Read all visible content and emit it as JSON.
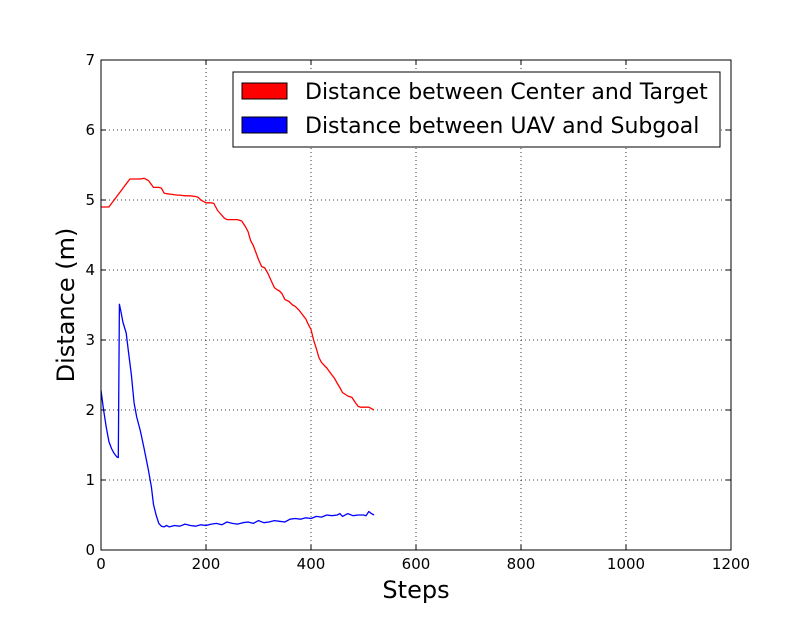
{
  "chart_data": {
    "type": "line",
    "title": "",
    "xlabel": "Steps",
    "ylabel": "Distance (m)",
    "xlim": [
      0,
      1200
    ],
    "ylim": [
      0,
      7
    ],
    "xticks": [
      0,
      200,
      400,
      600,
      800,
      1000,
      1200
    ],
    "yticks": [
      0,
      1,
      2,
      3,
      4,
      5,
      6,
      7
    ],
    "xtick_labels": [
      "0",
      "200",
      "400",
      "600",
      "800",
      "1000",
      "1200"
    ],
    "ytick_labels": [
      "0",
      "1",
      "2",
      "3",
      "4",
      "5",
      "6",
      "7"
    ],
    "grid": true,
    "legend_position": "top-right",
    "series": [
      {
        "name": "Distance between Center and Target",
        "color": "#ff0000",
        "x": [
          0,
          15,
          25,
          35,
          45,
          55,
          65,
          75,
          82,
          90,
          100,
          110,
          115,
          120,
          125,
          135,
          145,
          150,
          160,
          170,
          180,
          185,
          190,
          195,
          200,
          205,
          210,
          215,
          222,
          228,
          235,
          240,
          250,
          260,
          268,
          275,
          280,
          285,
          290,
          295,
          300,
          306,
          312,
          318,
          324,
          330,
          335,
          340,
          345,
          350,
          358,
          365,
          370,
          378,
          385,
          390,
          395,
          400,
          405,
          410,
          415,
          420,
          430,
          438,
          445,
          450,
          455,
          460,
          470,
          478,
          485,
          490,
          495,
          500,
          510,
          520
        ],
        "y": [
          4.9,
          4.9,
          5.0,
          5.1,
          5.2,
          5.3,
          5.3,
          5.3,
          5.31,
          5.28,
          5.18,
          5.18,
          5.17,
          5.1,
          5.09,
          5.08,
          5.07,
          5.07,
          5.06,
          5.06,
          5.05,
          5.04,
          5.0,
          4.98,
          4.96,
          4.96,
          4.96,
          4.95,
          4.85,
          4.8,
          4.74,
          4.72,
          4.72,
          4.72,
          4.7,
          4.62,
          4.55,
          4.42,
          4.35,
          4.25,
          4.15,
          4.05,
          4.03,
          3.95,
          3.85,
          3.75,
          3.72,
          3.7,
          3.66,
          3.58,
          3.55,
          3.5,
          3.48,
          3.42,
          3.35,
          3.3,
          3.22,
          3.15,
          3.0,
          2.88,
          2.75,
          2.68,
          2.6,
          2.52,
          2.45,
          2.38,
          2.32,
          2.25,
          2.2,
          2.18,
          2.1,
          2.05,
          2.04,
          2.04,
          2.04,
          2.0
        ]
      },
      {
        "name": "Distance between UAV and Subgoal",
        "color": "#0000ff",
        "x": [
          0,
          5,
          10,
          15,
          20,
          25,
          30,
          33,
          35,
          38,
          42,
          48,
          52,
          58,
          63,
          68,
          75,
          82,
          90,
          96,
          100,
          105,
          110,
          115,
          120,
          125,
          130,
          140,
          150,
          160,
          170,
          180,
          190,
          200,
          210,
          220,
          230,
          240,
          250,
          260,
          270,
          280,
          290,
          300,
          310,
          320,
          330,
          340,
          350,
          360,
          370,
          380,
          390,
          400,
          410,
          420,
          430,
          440,
          450,
          455,
          460,
          470,
          480,
          490,
          500,
          505,
          510,
          515,
          520
        ],
        "y": [
          2.28,
          2.0,
          1.75,
          1.55,
          1.45,
          1.38,
          1.33,
          1.32,
          3.51,
          3.4,
          3.25,
          3.1,
          2.85,
          2.5,
          2.1,
          1.9,
          1.7,
          1.45,
          1.15,
          0.9,
          0.65,
          0.5,
          0.38,
          0.34,
          0.33,
          0.35,
          0.33,
          0.35,
          0.34,
          0.37,
          0.35,
          0.34,
          0.36,
          0.35,
          0.37,
          0.38,
          0.36,
          0.4,
          0.38,
          0.37,
          0.39,
          0.4,
          0.38,
          0.42,
          0.39,
          0.4,
          0.42,
          0.41,
          0.4,
          0.44,
          0.45,
          0.44,
          0.46,
          0.45,
          0.48,
          0.47,
          0.5,
          0.49,
          0.5,
          0.52,
          0.48,
          0.52,
          0.49,
          0.5,
          0.5,
          0.49,
          0.55,
          0.52,
          0.5
        ]
      }
    ]
  }
}
